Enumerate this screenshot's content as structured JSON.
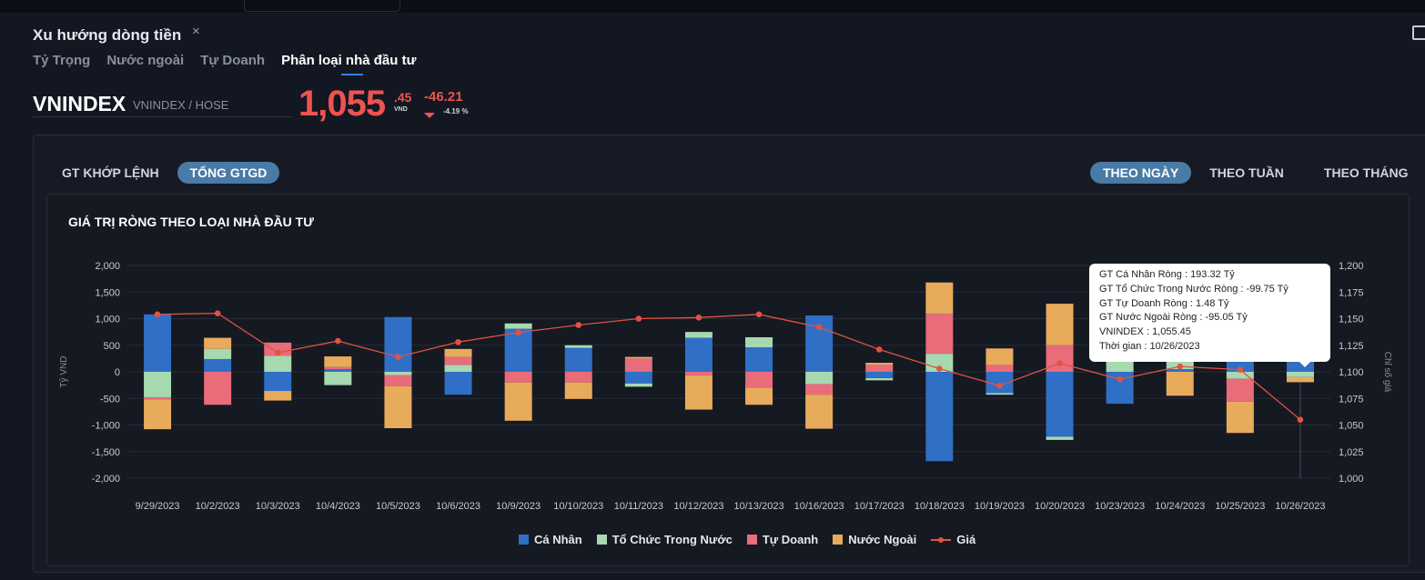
{
  "panel": {
    "title": "Xu hướng dòng tiền",
    "close_glyph": "×"
  },
  "subtabs": [
    "Tỷ Trọng",
    "Nước ngoài",
    "Tự Doanh",
    "Phân loại nhà đầu tư"
  ],
  "quote": {
    "ticker": "VNINDEX",
    "exchange": "VNINDEX / HOSE",
    "price_int": "1,055",
    "price_dec": ".45",
    "price_unit": "VND",
    "change": "-46.21",
    "change_pct": "-4.19 %"
  },
  "value_toggle": [
    "GT KHỚP LỆNH",
    "TỔNG GTGD"
  ],
  "period_toggle": [
    "THEO NGÀY",
    "THEO TUẦN",
    "THEO THÁNG"
  ],
  "tooltip": {
    "lines": [
      "GT Cá Nhân Ròng  : 193.32 Tỷ",
      "GT Tổ Chức Trong Nước Ròng : -99.75 Tỷ",
      "GT Tự Doanh Ròng : 1.48 Tỷ",
      "GT Nước Ngoài Ròng : -95.05 Tỷ",
      "VNINDEX : 1,055.45",
      "Thời gian : 10/26/2023"
    ]
  },
  "colors": {
    "ca_nhan": "#2f6fc6",
    "to_chuc": "#a7d9b0",
    "tu_doanh": "#e86c7a",
    "nuoc_ngoai": "#e8ab5c",
    "gia": "#e15241",
    "price_red": "#ef5350",
    "pill_active": "#4a7ba6"
  },
  "chart_data": {
    "type": "bar",
    "stacked": true,
    "title": "GIÁ TRỊ RÒNG THEO LOẠI NHÀ ĐẦU TƯ",
    "ylabel": "Tỷ VND",
    "y2label": "Chỉ số giá",
    "ylim": [
      -2000,
      2000
    ],
    "y2lim": [
      1000,
      1200
    ],
    "yticks": [
      "2,000",
      "1,500",
      "1,000",
      "500",
      "0",
      "-500",
      "-1,000",
      "-1,500",
      "-2,000"
    ],
    "y2ticks": [
      "1,200",
      "1,175",
      "1,150",
      "1,125",
      "1,100",
      "1,075",
      "1,050",
      "1,025",
      "1,000"
    ],
    "grid": true,
    "legend_position": "bottom",
    "categories": [
      "9/29/2023",
      "10/2/2023",
      "10/3/2023",
      "10/4/2023",
      "10/5/2023",
      "10/6/2023",
      "10/9/2023",
      "10/10/2023",
      "10/11/2023",
      "10/12/2023",
      "10/13/2023",
      "10/16/2023",
      "10/17/2023",
      "10/18/2023",
      "10/19/2023",
      "10/20/2023",
      "10/23/2023",
      "10/24/2023",
      "10/25/2023",
      "10/26/2023"
    ],
    "series": [
      {
        "name": "Cá Nhân",
        "values": [
          1080,
          240,
          -360,
          50,
          1030,
          -430,
          810,
          450,
          -220,
          640,
          460,
          1060,
          -120,
          -1680,
          -400,
          -1220,
          -600,
          50,
          450,
          193
        ]
      },
      {
        "name": "Tổ Chức Trong Nước",
        "values": [
          -480,
          190,
          300,
          -250,
          -60,
          130,
          100,
          50,
          -60,
          110,
          190,
          -230,
          -40,
          340,
          -30,
          -60,
          650,
          200,
          -130,
          -100
        ]
      },
      {
        "name": "Tự Doanh",
        "values": [
          -40,
          -620,
          250,
          40,
          -210,
          150,
          -200,
          -200,
          250,
          -70,
          -300,
          -200,
          130,
          750,
          130,
          500,
          600,
          100,
          -430,
          1
        ]
      },
      {
        "name": "Nước Ngoài",
        "values": [
          -560,
          210,
          -180,
          200,
          -790,
          150,
          -720,
          -310,
          30,
          -640,
          -320,
          -640,
          40,
          590,
          310,
          780,
          100,
          -450,
          -590,
          -95
        ]
      },
      {
        "name": "Giá",
        "type": "line",
        "values": [
          1154,
          1155,
          1118,
          1129,
          1114,
          1128,
          1137,
          1144,
          1150,
          1151,
          1154,
          1142,
          1121,
          1103,
          1087,
          1108,
          1093,
          1105,
          1102,
          1055
        ]
      }
    ]
  }
}
